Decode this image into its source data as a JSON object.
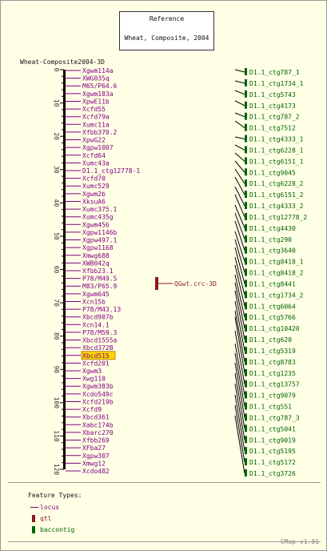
{
  "reference_box": {
    "title": "Reference",
    "map_name": "Wheat, Composite, 2004"
  },
  "map_title": "Wheat-Composite2004-3D",
  "axis_ticks": [
    "0",
    "10",
    "20",
    "30",
    "40",
    "50",
    "60",
    "70",
    "80",
    "90",
    "100",
    "110",
    "120"
  ],
  "loci": [
    "Xgwm114a",
    "XWG035q",
    "M65/P64.6",
    "Xgwm183a",
    "XpwE11b",
    "Xcfd55",
    "Xcfd79a",
    "Xumc11a",
    "Xfbb370.2",
    "XpwG22",
    "Xgpw1007",
    "Xcfd64",
    "Xumc43a",
    "D1.1_ctg12778-1",
    "Xcfd70",
    "Xumc529",
    "Xgwm2b",
    "XksuA6",
    "Xumc375.1",
    "Xumc435g",
    "Xgwm456",
    "Xgpw1146b",
    "Xgpw497.1",
    "Xgpw1168",
    "Xmwg688",
    "XWB042q",
    "Xfbb23.1",
    "P78/M49.5",
    "M83/P65.9",
    "Xgwm645",
    "Xcn15b",
    "P78/M43.13",
    "Xbcd907b",
    "Xcn14.1",
    "P78/M59.3",
    "Xbcd1555a",
    "Xbcd372B",
    "Xbcd515",
    "Xcfd201",
    "Xgwm3",
    "Xwg110",
    "Xgwm383b",
    "Xcdo549c",
    "Xcfd219b",
    "Xcfd9",
    "Xbcd361",
    "Xabc174b",
    "Xbarc270",
    "Xfbb269",
    "XFba27",
    "Xgpw307",
    "Xmwg12",
    "Xcdo482"
  ],
  "highlighted_locus": "Xbcd515",
  "qtl_label": "QGwt.crc-3D",
  "contigs": [
    "D1.1_ctg787_1",
    "D1.1_ctg1734_1",
    "D1.1_ctg5743",
    "D1.1_ctg4173",
    "D1.1_ctg787_2",
    "D1.1_ctg7512",
    "D1.1_ctg4333_1",
    "D1.1_ctg6228_1",
    "D1.1_ctg6151_1",
    "D1.1_ctg9045",
    "D1.1_ctg6228_2",
    "D1.1_ctg6151_2",
    "D1.1_ctg4333_2",
    "D1.1_ctg12778_2",
    "D1.1_ctg4430",
    "D1.1_ctg290",
    "D1.1_ctg3640",
    "D1.1_ctg8418_1",
    "D1.1_ctg8418_2",
    "D1.1_ctg8441",
    "D1.1_ctg1734_2",
    "D1.1_ctg6064",
    "D1.1_ctg5766",
    "D1.1_ctg10420",
    "D1.1_ctg620",
    "D1.1_ctg5319",
    "D1.1_ctg8783",
    "D1.1_ctg1235",
    "D1.1_ctg13757",
    "D1.1_ctg9079",
    "D1.1_ctg551",
    "D1.1_ctg787_3",
    "D1.1_ctg5041",
    "D1.1_ctg9019",
    "D1.1_ctg5195",
    "D1.1_ctg5172",
    "D1.1_ctg3726"
  ],
  "legend": {
    "title": "Feature Types:",
    "items": [
      "locus",
      "qtl",
      "baccontig"
    ]
  },
  "footer": "CMap v1.01",
  "colors": {
    "background": "#ffffe6",
    "locus": "#800080",
    "qtl": "#8b1a1a",
    "contig": "#006400",
    "axis": "#000000",
    "highlight": "#ffd700"
  }
}
